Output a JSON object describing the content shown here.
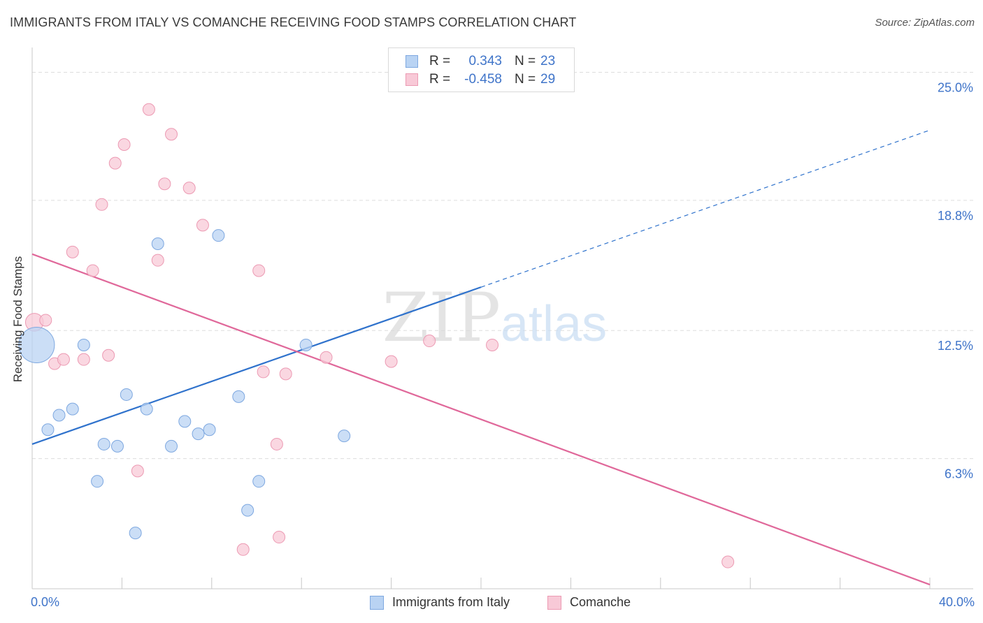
{
  "title": "IMMIGRANTS FROM ITALY VS COMANCHE RECEIVING FOOD STAMPS CORRELATION CHART",
  "source": "Source: ZipAtlas.com",
  "watermark": {
    "zip": "ZIP",
    "atlas": "atlas"
  },
  "legend_top": {
    "series1": {
      "r_label": "R =",
      "r_value": "0.343",
      "n_label": "N =",
      "n_value": "23"
    },
    "series2": {
      "r_label": "R =",
      "r_value": "-0.458",
      "n_label": "N =",
      "n_value": "29"
    }
  },
  "legend_bottom": {
    "series1": "Immigrants from Italy",
    "series2": "Comanche"
  },
  "colors": {
    "blue_fill": "#b9d3f3",
    "blue_stroke": "#7ea8e0",
    "blue_line": "#2f72cc",
    "pink_fill": "#f8c9d7",
    "pink_stroke": "#ec9ab3",
    "pink_line": "#e0689a",
    "tick_text": "#3f74c9",
    "grid": "#dddddd"
  },
  "chart_data": {
    "type": "scatter",
    "title": "IMMIGRANTS FROM ITALY VS COMANCHE RECEIVING FOOD STAMPS CORRELATION CHART",
    "xlabel": "",
    "ylabel": "Receiving Food Stamps",
    "xlim": [
      0,
      40
    ],
    "ylim": [
      0,
      26.2
    ],
    "x_tick_labels": [
      "0.0%",
      "40.0%"
    ],
    "y_ticks": [
      6.3,
      12.5,
      18.8,
      25.0
    ],
    "y_tick_labels": [
      "6.3%",
      "12.5%",
      "18.8%",
      "25.0%"
    ],
    "grid": true,
    "legend_position": "top-center",
    "series": [
      {
        "name": "Immigrants from Italy",
        "r": 0.343,
        "n": 23,
        "points": [
          [
            0.2,
            11.8,
            3
          ],
          [
            0.7,
            7.7,
            1
          ],
          [
            1.2,
            8.4,
            1
          ],
          [
            1.8,
            8.7,
            1
          ],
          [
            2.3,
            11.8,
            1
          ],
          [
            2.9,
            5.2,
            1
          ],
          [
            3.2,
            7.0,
            1
          ],
          [
            3.8,
            6.9,
            1
          ],
          [
            4.2,
            9.4,
            1
          ],
          [
            4.6,
            2.7,
            1
          ],
          [
            5.1,
            8.7,
            1
          ],
          [
            5.6,
            16.7,
            1
          ],
          [
            6.2,
            6.9,
            1
          ],
          [
            6.8,
            8.1,
            1
          ],
          [
            7.4,
            7.5,
            1
          ],
          [
            7.9,
            7.7,
            1
          ],
          [
            8.3,
            17.1,
            1
          ],
          [
            9.2,
            9.3,
            1
          ],
          [
            9.6,
            3.8,
            1
          ],
          [
            10.1,
            5.2,
            1
          ],
          [
            12.2,
            11.8,
            1
          ],
          [
            13.9,
            7.4,
            1
          ],
          [
            16.2,
            24.5,
            1
          ]
        ],
        "trend": {
          "x": [
            0,
            20
          ],
          "y": [
            7.0,
            14.6
          ]
        },
        "trend_extension": {
          "x": [
            20,
            40
          ],
          "y": [
            14.6,
            22.2
          ]
        }
      },
      {
        "name": "Comanche",
        "r": -0.458,
        "n": 29,
        "points": [
          [
            0.1,
            12.9,
            1.5
          ],
          [
            0.6,
            13.0,
            1
          ],
          [
            1.0,
            10.9,
            1
          ],
          [
            1.4,
            11.1,
            1
          ],
          [
            1.8,
            16.3,
            1
          ],
          [
            2.3,
            11.1,
            1
          ],
          [
            2.7,
            15.4,
            1
          ],
          [
            3.1,
            18.6,
            1
          ],
          [
            3.4,
            11.3,
            1
          ],
          [
            3.7,
            20.6,
            1
          ],
          [
            4.1,
            21.5,
            1
          ],
          [
            4.7,
            5.7,
            1
          ],
          [
            5.2,
            23.2,
            1
          ],
          [
            5.6,
            15.9,
            1
          ],
          [
            5.9,
            19.6,
            1
          ],
          [
            6.2,
            22.0,
            1
          ],
          [
            7.0,
            19.4,
            1
          ],
          [
            7.6,
            17.6,
            1
          ],
          [
            9.4,
            1.9,
            1
          ],
          [
            10.1,
            15.4,
            1
          ],
          [
            10.3,
            10.5,
            1
          ],
          [
            10.9,
            7.0,
            1
          ],
          [
            11.0,
            2.5,
            1
          ],
          [
            11.3,
            10.4,
            1
          ],
          [
            13.1,
            11.2,
            1
          ],
          [
            16.0,
            11.0,
            1
          ],
          [
            17.7,
            12.0,
            1
          ],
          [
            20.5,
            11.8,
            1
          ],
          [
            31.0,
            1.3,
            1
          ]
        ],
        "trend": {
          "x": [
            0,
            40
          ],
          "y": [
            16.2,
            0.2
          ]
        }
      }
    ]
  }
}
